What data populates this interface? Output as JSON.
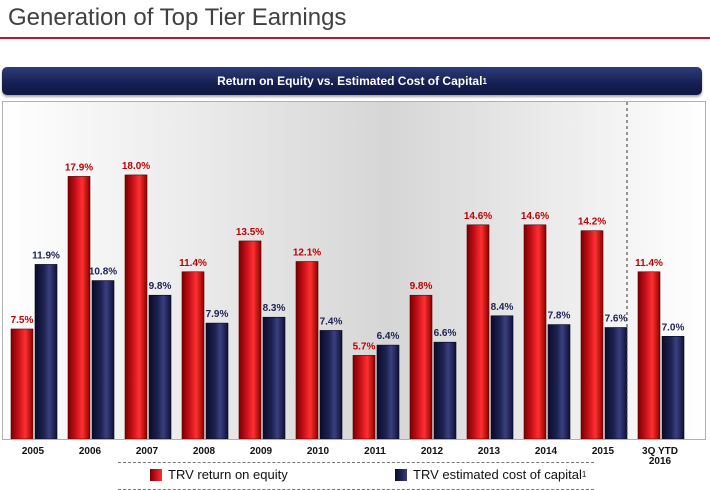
{
  "page": {
    "title": "Generation of Top Tier Earnings",
    "banner_text": "Return on Equity vs. Estimated Cost of Capital",
    "banner_superscript": "1"
  },
  "colors": {
    "title_rule": "#c8102e",
    "banner": "#1a2456",
    "roe_bar": "#c8101a",
    "coc_bar": "#1d2150",
    "roe_label": "#c00000",
    "coc_label": "#1d2150"
  },
  "chart_data": {
    "type": "bar",
    "categories": [
      "2005",
      "2006",
      "2007",
      "2008",
      "2009",
      "2010",
      "2011",
      "2012",
      "2013",
      "2014",
      "2015",
      "3Q YTD 2016"
    ],
    "series": [
      {
        "name": "TRV return on equity",
        "values": [
          7.5,
          17.9,
          18.0,
          11.4,
          13.5,
          12.1,
          5.7,
          9.8,
          14.6,
          14.6,
          14.2,
          11.4
        ],
        "labels": [
          "7.5%",
          "17.9%",
          "18.0%",
          "11.4%",
          "13.5%",
          "12.1%",
          "5.7%",
          "9.8%",
          "14.6%",
          "14.6%",
          "14.2%",
          "11.4%"
        ]
      },
      {
        "name": "TRV estimated cost of capital",
        "name_superscript": "1",
        "values": [
          11.9,
          10.8,
          9.8,
          7.9,
          8.3,
          7.4,
          6.4,
          6.6,
          8.4,
          7.8,
          7.6,
          7.0
        ],
        "labels": [
          "11.9%",
          "10.8%",
          "9.8%",
          "7.9%",
          "8.3%",
          "7.4%",
          "6.4%",
          "6.6%",
          "8.4%",
          "7.8%",
          "7.6%",
          "7.0%"
        ]
      }
    ],
    "ylim": [
      0,
      20
    ],
    "grid": false,
    "legend_position": "bottom",
    "separator_before": "3Q YTD 2016"
  }
}
